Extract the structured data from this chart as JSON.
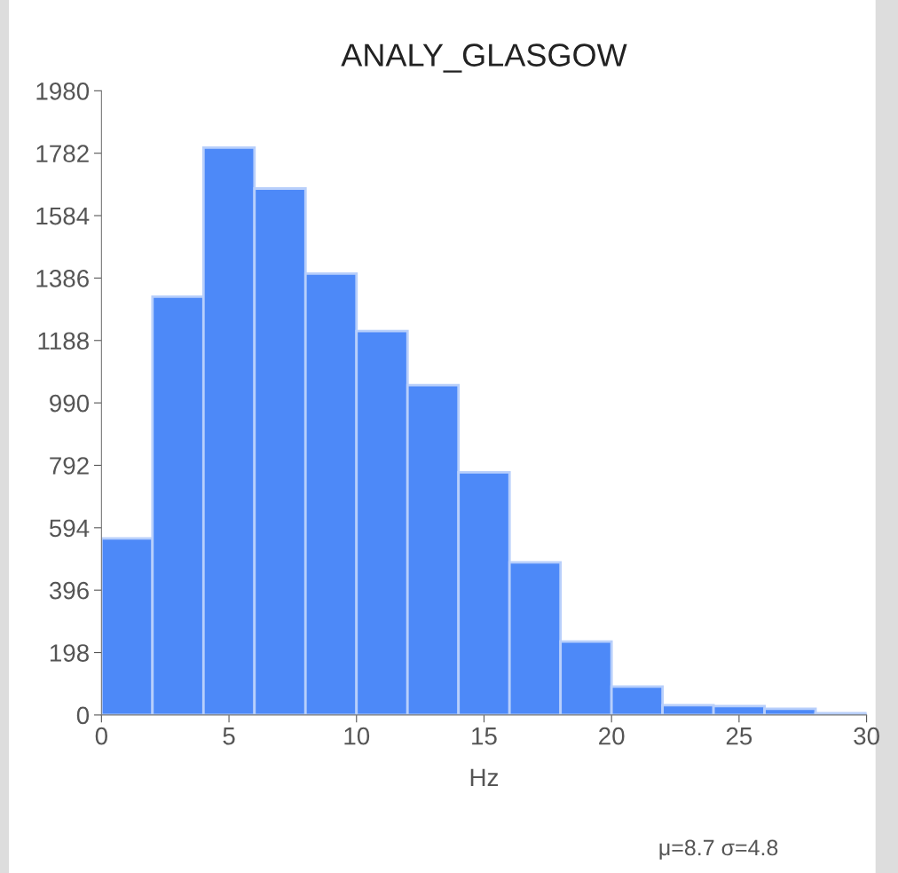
{
  "chart_data": {
    "type": "histogram",
    "title": "ANALY_GLASGOW",
    "xlabel": "Hz",
    "bins": [
      0,
      2,
      4,
      6,
      8,
      10,
      12,
      14,
      16,
      18,
      20,
      22,
      24,
      26,
      28,
      30
    ],
    "values": [
      560,
      1327,
      1800,
      1670,
      1400,
      1218,
      1046,
      770,
      484,
      233,
      90,
      31,
      28,
      20,
      6
    ],
    "color": "#4d89f8",
    "xlim": [
      0,
      30
    ],
    "xticks": [
      0,
      5,
      10,
      15,
      20,
      25,
      30
    ],
    "ylim": [
      0,
      1980
    ],
    "yticks": [
      0,
      198,
      396,
      594,
      792,
      990,
      1188,
      1386,
      1584,
      1782,
      1980
    ],
    "grid": false,
    "legend": false,
    "annotations": [
      "μ=8.7 σ=4.8"
    ]
  }
}
